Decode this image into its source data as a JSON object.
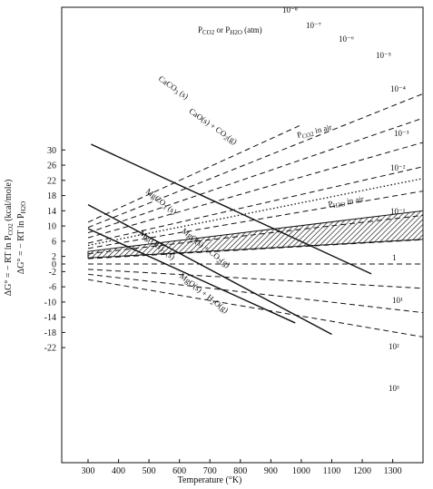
{
  "chart_data": {
    "type": "line",
    "xlabel": "Temperature (°K)",
    "ylabel_line1": "ΔG° = − RT ln P_CO2 (kcal/mole)",
    "ylabel_line2": "ΔG° = − RT ln P_H2O",
    "xlim": [
      300,
      1400
    ],
    "ylim": [
      -24,
      34
    ],
    "x_ticks": [
      300,
      400,
      500,
      600,
      700,
      800,
      900,
      1000,
      1100,
      1200,
      1300
    ],
    "y_ticks": [
      30,
      26,
      22,
      18,
      14,
      10,
      6,
      2,
      0,
      -2,
      -6,
      -10,
      -14,
      -18,
      -22
    ],
    "header_label": "P_CO2  or  P_H2O (atm)",
    "pressure_lines": [
      {
        "label": "10⁻⁸",
        "x": [
          300,
          1000
        ],
        "y": [
          11.0,
          36.6
        ]
      },
      {
        "label": "10⁻⁷",
        "x": [
          300,
          1400
        ],
        "y": [
          9.6,
          44.8
        ]
      },
      {
        "label": "10⁻⁶",
        "x": [
          300,
          1400
        ],
        "y": [
          8.2,
          38.4
        ]
      },
      {
        "label": "10⁻⁵",
        "x": [
          300,
          1400
        ],
        "y": [
          6.9,
          32.0
        ]
      },
      {
        "label": "10⁻⁴",
        "x": [
          300,
          1400
        ],
        "y": [
          5.5,
          25.6
        ]
      },
      {
        "label": "10⁻³",
        "x": [
          300,
          1400
        ],
        "y": [
          4.1,
          19.2
        ]
      },
      {
        "label": "10⁻²",
        "x": [
          300,
          1400
        ],
        "y": [
          2.7,
          12.8
        ]
      },
      {
        "label": "10⁻¹",
        "x": [
          300,
          1400
        ],
        "y": [
          1.4,
          6.4
        ]
      },
      {
        "label": "1",
        "x": [
          300,
          1400
        ],
        "y": [
          0,
          0
        ]
      },
      {
        "label": "10¹",
        "x": [
          300,
          1400
        ],
        "y": [
          -1.4,
          -6.4
        ]
      },
      {
        "label": "10²",
        "x": [
          300,
          1400
        ],
        "y": [
          -2.7,
          -12.8
        ]
      },
      {
        "label": "10³",
        "x": [
          300,
          1400
        ],
        "y": [
          -4.1,
          -19.2
        ]
      }
    ],
    "reactions": [
      {
        "label": "CaCO3(s) → CaO(s) + CO2(g)",
        "x": [
          310,
          1230
        ],
        "y": [
          31.5,
          -2.6
        ]
      },
      {
        "label": "MgCO3(s) → MgO(s) + CO2(g)",
        "x": [
          300,
          1100
        ],
        "y": [
          15.6,
          -18.5
        ]
      },
      {
        "label": "Mg(OH)2(s) → MgO(s) + H2O(g)",
        "x": [
          300,
          980
        ],
        "y": [
          9.3,
          -15.5
        ]
      }
    ],
    "bands": [
      {
        "label": "P_H2O in air",
        "x": [
          300,
          1400
        ],
        "y_low": [
          1.6,
          6.5
        ],
        "y_high": [
          3.3,
          14.0
        ]
      }
    ],
    "dotted_line": {
      "label": "P_CO2 in air",
      "x": [
        300,
        1400
      ],
      "y": [
        4.9,
        22.5
      ]
    }
  }
}
